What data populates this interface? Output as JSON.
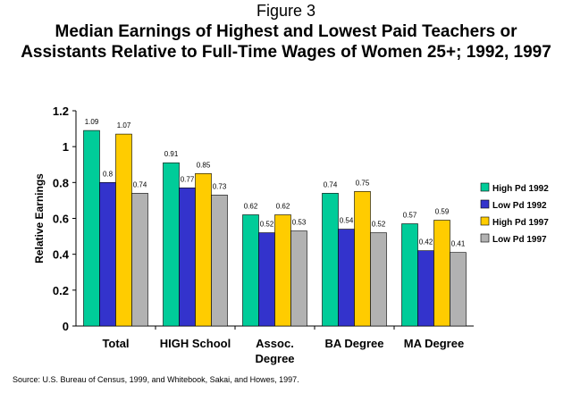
{
  "figure_label": "Figure 3",
  "title_lines": [
    "Median Earnings of Highest and Lowest Paid Teachers or",
    "Assistants Relative to Full-Time Wages of Women 25+; 1992, 1997"
  ],
  "source": "Source: U.S. Bureau of Census, 1999, and Whitebook, Sakai, and Howes, 1997.",
  "chart_data": {
    "type": "bar",
    "title": "Median Earnings of Highest and Lowest Paid Teachers or Assistants Relative to Full-Time Wages of Women 25+; 1992, 1997",
    "xlabel": "",
    "ylabel": "Relative Earnings",
    "ylim": [
      0,
      1.2
    ],
    "yticks": [
      "0",
      "0.2",
      "0.4",
      "0.6",
      "0.8",
      "1",
      "1.2"
    ],
    "grid": false,
    "legend_position": "right",
    "categories": [
      "Total",
      "HIGH School",
      "Assoc. Degree",
      "BA Degree",
      "MA Degree"
    ],
    "category_label_lines": [
      [
        "Total"
      ],
      [
        "HIGH School"
      ],
      [
        "Assoc.",
        "Degree"
      ],
      [
        "BA Degree"
      ],
      [
        "MA Degree"
      ]
    ],
    "series": [
      {
        "name": "High Pd 1992",
        "color": "#00cc99",
        "values": [
          1.09,
          0.91,
          0.62,
          0.74,
          0.57
        ],
        "labels": [
          "1.09",
          "0.91",
          "0.62",
          "0.74",
          "0.57"
        ]
      },
      {
        "name": "Low Pd 1992",
        "color": "#3333cc",
        "values": [
          0.8,
          0.77,
          0.52,
          0.54,
          0.42
        ],
        "labels": [
          "0.8",
          "0.77",
          "0.52",
          "0.54",
          "0.42"
        ]
      },
      {
        "name": "High Pd 1997",
        "color": "#ffcc00",
        "values": [
          1.07,
          0.85,
          0.62,
          0.75,
          0.59
        ],
        "labels": [
          "1.07",
          "0.85",
          "0.62",
          "0.75",
          "0.59"
        ]
      },
      {
        "name": "Low Pd 1997",
        "color": "#b2b2b2",
        "values": [
          0.74,
          0.73,
          0.53,
          0.52,
          0.41
        ],
        "labels": [
          "0.74",
          "0.73",
          "0.53",
          "0.52",
          "0.41"
        ]
      }
    ]
  }
}
